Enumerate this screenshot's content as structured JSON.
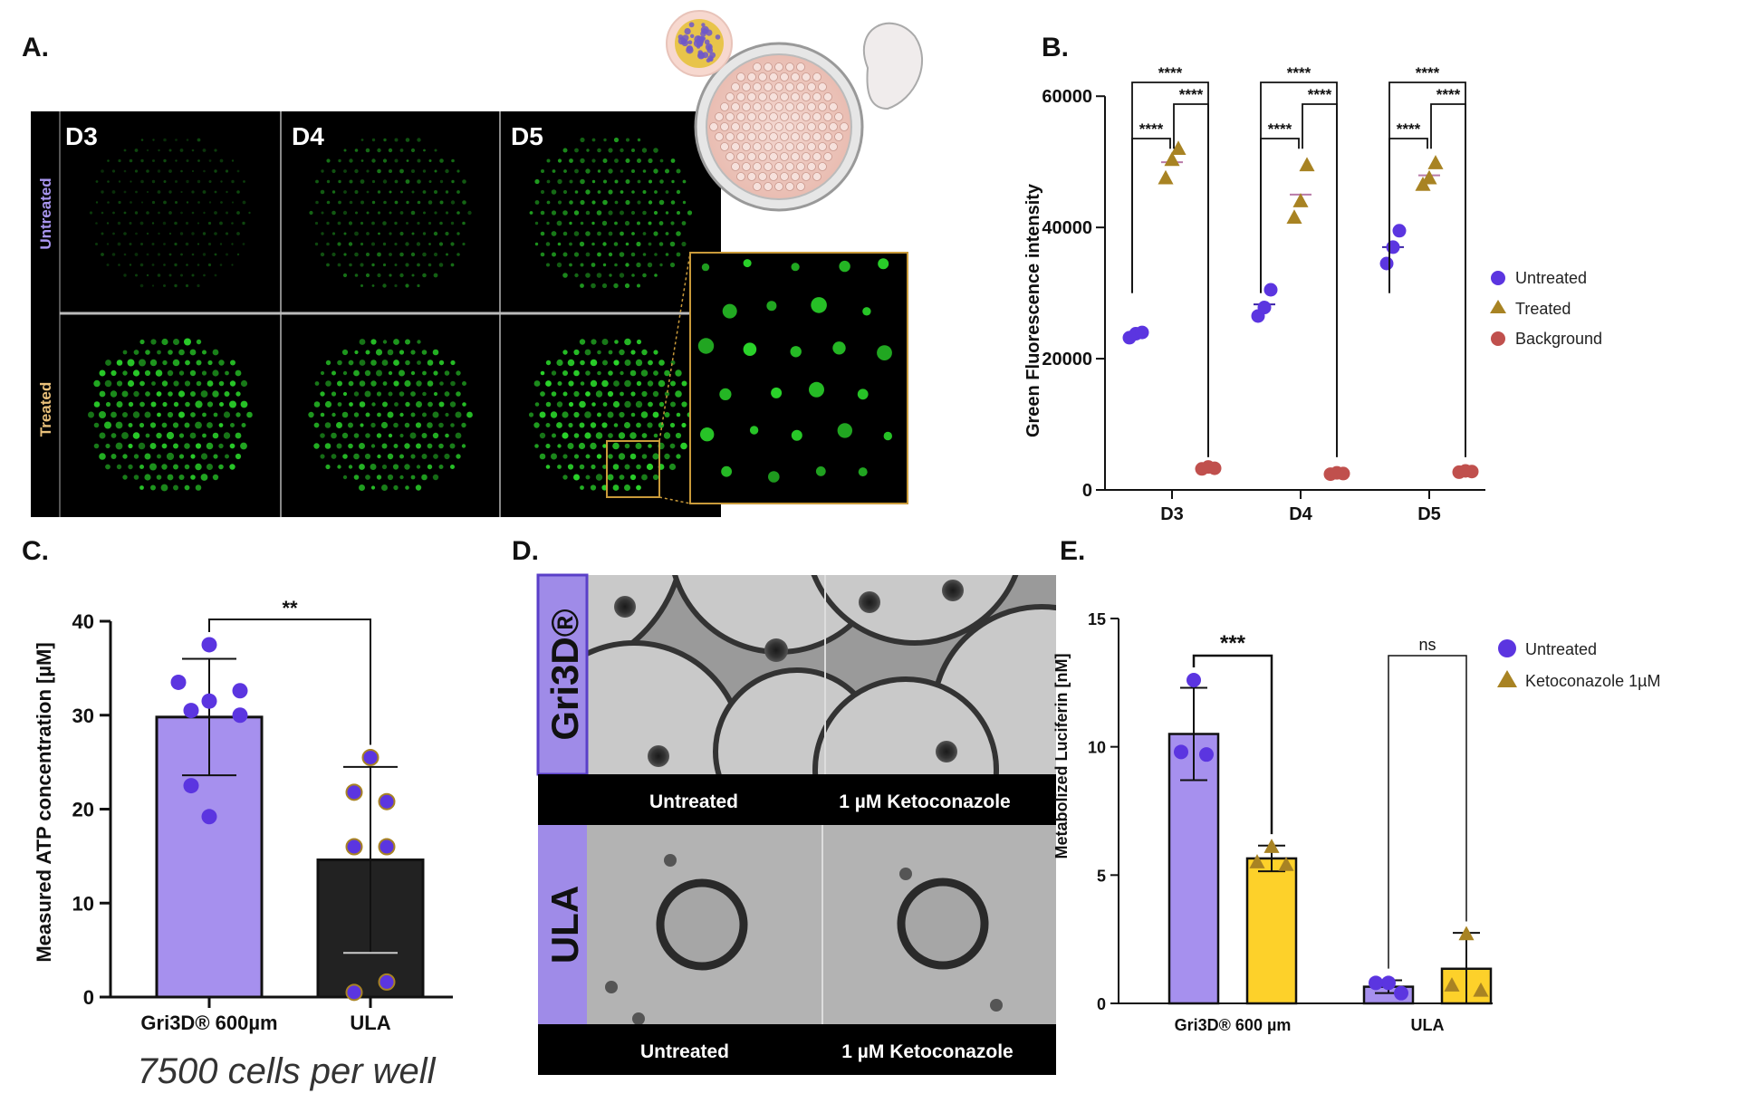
{
  "colors": {
    "purple": "#5b35e0",
    "bar_purple": "#a690ee",
    "gold": "#a88323",
    "yellow": "#fdd12a",
    "red": "#c0504d",
    "dark": "#222222",
    "green": "#2ad42a"
  },
  "panel_labels": {
    "a": "A.",
    "b": "B.",
    "c": "C.",
    "d": "D.",
    "e": "E."
  },
  "panel_a": {
    "columns": [
      "D3",
      "D4",
      "D5"
    ],
    "rows": [
      "Untreated",
      "Treated"
    ]
  },
  "panel_b": {
    "ylabel": "Green Fluorescence intensity",
    "legend": [
      "Untreated",
      "Treated",
      "Background"
    ],
    "sig_labels": [
      "****",
      "****",
      "****",
      "****",
      "****",
      "****",
      "****",
      "****",
      "****"
    ],
    "chart_data": {
      "type": "scatter",
      "categories": [
        "D3",
        "D4",
        "D5"
      ],
      "ylim": [
        0,
        65000
      ],
      "yticks": [
        0,
        20000,
        40000,
        60000
      ],
      "series": [
        {
          "name": "Untreated",
          "points": [
            [
              23200,
              23800,
              24000
            ],
            [
              26500,
              27800,
              30500
            ],
            [
              34500,
              37000,
              39500
            ]
          ]
        },
        {
          "name": "Treated",
          "points": [
            [
              47500,
              50300,
              52000
            ],
            [
              41500,
              44000,
              49500
            ],
            [
              46500,
              47500,
              49800
            ]
          ]
        },
        {
          "name": "Background",
          "points": [
            [
              3200,
              3500,
              3300
            ],
            [
              2400,
              2600,
              2500
            ],
            [
              2700,
              2900,
              2800
            ]
          ]
        }
      ],
      "legend": "right"
    }
  },
  "panel_c": {
    "ylabel": "Measured ATP concentration [µM]",
    "sig_label": "**",
    "footnote": "7500 cells per well",
    "chart_data": {
      "type": "bar",
      "categories": [
        "Gri3D® 600µm",
        "ULA"
      ],
      "values": [
        29.8,
        14.6
      ],
      "errors": [
        6.2,
        9.9
      ],
      "points": [
        [
          37.5,
          33.5,
          32.6,
          31.5,
          30.5,
          30.0,
          22.5,
          19.2
        ],
        [
          25.5,
          21.8,
          20.8,
          16.0,
          16.0,
          1.6,
          0.5
        ]
      ],
      "ylim": [
        0,
        40
      ],
      "yticks": [
        0,
        10,
        20,
        30,
        40
      ]
    }
  },
  "panel_d": {
    "row_labels": [
      "Gri3D®",
      "ULA"
    ],
    "captions": [
      "Untreated",
      "1 µM Ketoconazole",
      "Untreated",
      "1 µM Ketoconazole"
    ]
  },
  "panel_e": {
    "ylabel": "Metabolized Luciferin [nM]",
    "sig_labels": [
      "***",
      "ns"
    ],
    "legend": [
      "Untreated",
      "Ketoconazole 1µM"
    ],
    "chart_data": {
      "type": "bar",
      "categories": [
        "Gri3D® 600 µm",
        "ULA"
      ],
      "series": [
        {
          "name": "Untreated",
          "values": [
            10.5,
            0.65
          ],
          "errors": [
            1.8,
            0.25
          ],
          "points": [
            [
              12.6,
              9.8,
              9.7
            ],
            [
              0.8,
              0.8,
              0.4
            ]
          ]
        },
        {
          "name": "Ketoconazole 1µM",
          "values": [
            5.65,
            1.35
          ],
          "errors": [
            0.5,
            1.4
          ],
          "points": [
            [
              6.1,
              5.5,
              5.4
            ],
            [
              2.7,
              0.7,
              0.5
            ]
          ]
        }
      ],
      "ylim": [
        0,
        15
      ],
      "yticks": [
        0,
        5,
        10,
        15
      ],
      "legend": "top-right"
    }
  }
}
